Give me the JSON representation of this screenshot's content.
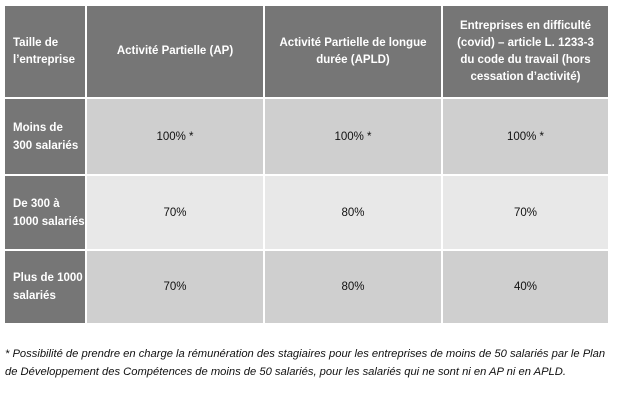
{
  "table": {
    "headers": [
      "Taille de l’entreprise",
      "Activité Partielle (AP)",
      "Activité Partielle de longue durée (APLD)",
      "Entreprises en difficulté (covid) – article L. 1233-3 du code du travail (hors cessation d’activité)"
    ],
    "rows": [
      {
        "label": "Moins de 300 salariés",
        "values": [
          "100% *",
          "100% *",
          "100% *"
        ]
      },
      {
        "label": "De 300 à 1000 salariés",
        "values": [
          "70%",
          "80%",
          "70%"
        ]
      },
      {
        "label": "Plus de 1000 salariés",
        "values": [
          "70%",
          "80%",
          "40%"
        ]
      }
    ]
  },
  "footnote": "* Possibilité de prendre en charge la rémunération des stagiaires pour les entreprises de moins de 50 salariés par le Plan de Développement des Compétences de moins de 50 salariés, pour les salariés qui ne sont ni en AP ni en APLD.",
  "colors": {
    "header_bg": "#767676",
    "row_dark_bg": "#cfcfcf",
    "row_light_bg": "#e8e8e8"
  }
}
